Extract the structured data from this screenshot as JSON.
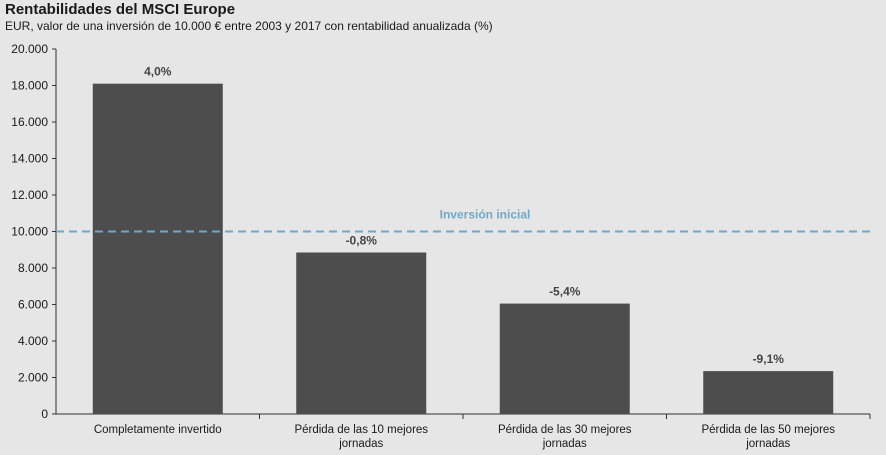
{
  "title": "Rentabilidades del MSCI Europe",
  "subtitle": "EUR, valor de una inversión de 10.000 € entre 2003 y 2017 con rentabilidad anualizada (%)",
  "colors": {
    "bar": "#4d4d4d",
    "reference_line": "#6fa8c8",
    "background": "#e6e6e6",
    "axis": "#333333"
  },
  "chart_data": {
    "type": "bar",
    "categories": [
      "Completamente invertido",
      "Pérdida de las 10 mejores jornadas",
      "Pérdida de las 30 mejores jornadas",
      "Pérdida de las 50 mejores jornadas"
    ],
    "category_lines": [
      [
        "Completamente invertido"
      ],
      [
        "Pérdida de las 10 mejores",
        "jornadas"
      ],
      [
        "Pérdida de las 30 mejores",
        "jornadas"
      ],
      [
        "Pérdida de las 50 mejores",
        "jornadas"
      ]
    ],
    "values": [
      18100,
      8850,
      6050,
      2350
    ],
    "data_labels": [
      "4,0%",
      "-0,8%",
      "-5,4%",
      "-9,1%"
    ],
    "ylim": [
      0,
      20000
    ],
    "yticks": [
      0,
      2000,
      4000,
      6000,
      8000,
      10000,
      12000,
      14000,
      16000,
      18000,
      20000
    ],
    "ytick_labels": [
      "0",
      "2.000",
      "4.000",
      "6.000",
      "8.000",
      "10.000",
      "12.000",
      "14.000",
      "16.000",
      "18.000",
      "20.000"
    ],
    "reference_line": {
      "value": 10000,
      "label": "Inversión inicial"
    },
    "xlabel": "",
    "ylabel": "",
    "grid": false,
    "legend": "none"
  }
}
